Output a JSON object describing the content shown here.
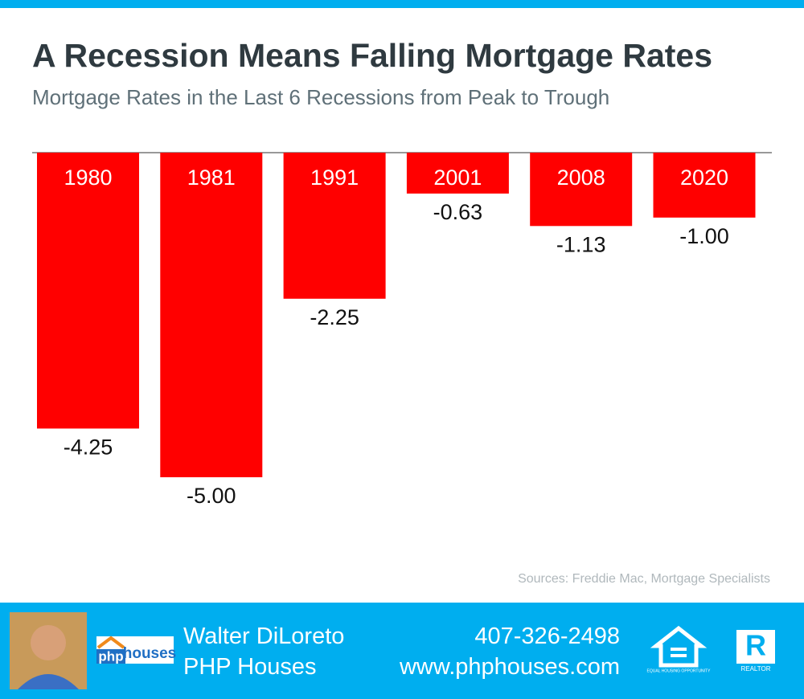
{
  "chart_data": {
    "type": "bar",
    "title": "A Recession Means Falling Mortgage Rates",
    "subtitle": "Mortgage Rates in the Last 6 Recessions from Peak to Trough",
    "categories": [
      "1980",
      "1981",
      "1991",
      "2001",
      "2008",
      "2020"
    ],
    "values": [
      -4.25,
      -5.0,
      -2.25,
      -0.63,
      -1.13,
      -1.0
    ],
    "value_labels": [
      "-4.25",
      "-5.00",
      "-2.25",
      "-0.63",
      "-1.13",
      "-1.00"
    ],
    "color": "#ff0000",
    "source": "Sources: Freddie Mac, Mortgage Specialists"
  },
  "footer": {
    "logo_left": "php",
    "logo_right": "houses",
    "name": "Walter DiLoreto",
    "company": "PHP Houses",
    "phone": "407-326-2498",
    "website": "www.phphouses.com",
    "equal_housing": "EQUAL HOUSING OPPORTUNITY",
    "realtor": "REALTOR"
  }
}
